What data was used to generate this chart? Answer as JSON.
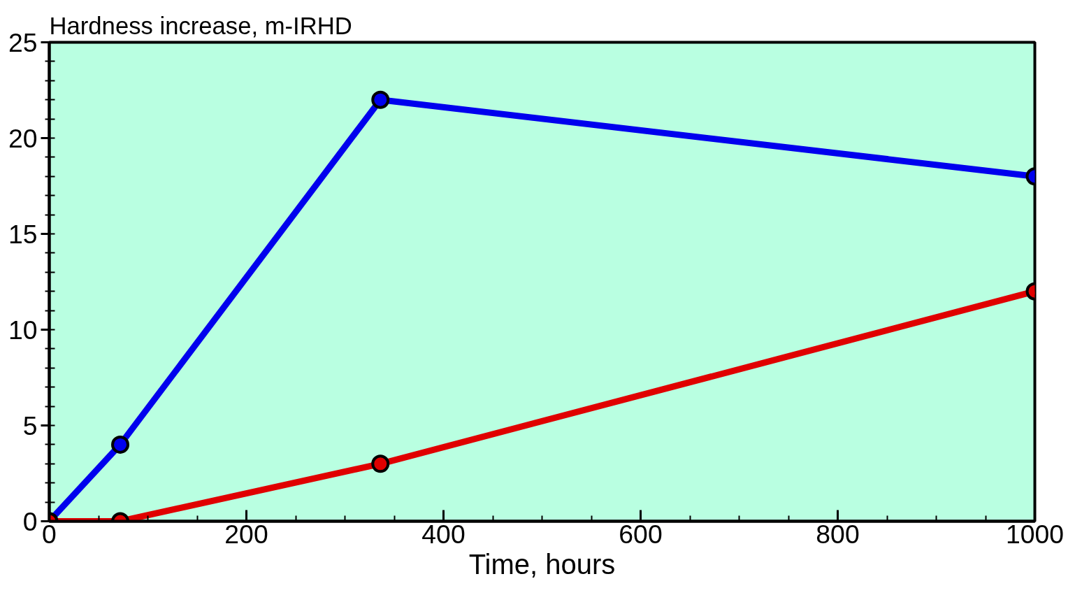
{
  "chart_data": {
    "type": "line",
    "xlabel": "Time, hours",
    "ylabel": "Hardness increase, m-IRHD",
    "x": [
      0,
      72,
      336,
      1000
    ],
    "series": [
      {
        "color": "#0000ee",
        "values": [
          0,
          4,
          22,
          18
        ]
      },
      {
        "color": "#e00000",
        "values": [
          0,
          0,
          3,
          12
        ]
      }
    ],
    "xlim": [
      0,
      1000
    ],
    "ylim": [
      0,
      25
    ],
    "xticks": [
      0,
      200,
      400,
      600,
      800,
      1000
    ],
    "yticks": [
      0,
      5,
      10,
      15,
      20,
      25
    ],
    "grid": false,
    "marker": "circle",
    "line_style": "solid"
  }
}
